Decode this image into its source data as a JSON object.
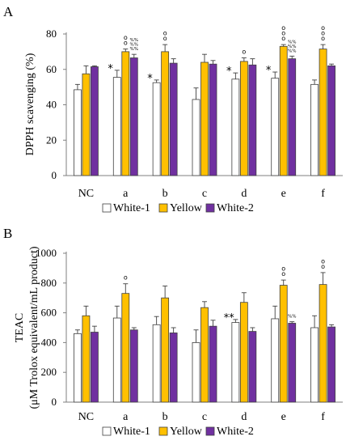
{
  "colors": {
    "White-1": "#ffffff",
    "Yellow": "#ffc000",
    "White-2": "#7030a0",
    "axis": "#7f7f7f",
    "outline": "#404040",
    "error": "#404040"
  },
  "chart_data": [
    {
      "panel": "A",
      "type": "bar",
      "ylabel": "DPPH scavenging (%)",
      "ylim": [
        0,
        80
      ],
      "yticks": [
        0,
        20,
        40,
        60,
        80
      ],
      "categories": [
        "NC",
        "a",
        "b",
        "c",
        "d",
        "e",
        "f"
      ],
      "series": [
        {
          "name": "White-1",
          "values": [
            48.5,
            55.5,
            52.5,
            43,
            54.5,
            55,
            51.5
          ],
          "errors": [
            3,
            4,
            1.5,
            6.5,
            3.5,
            3.5,
            2.5
          ]
        },
        {
          "name": "Yellow",
          "values": [
            57.5,
            70,
            70,
            64,
            64.5,
            73,
            71.5
          ],
          "errors": [
            4.5,
            1.5,
            4,
            4.5,
            2,
            1,
            2.5
          ]
        },
        {
          "name": "White-2",
          "values": [
            61.5,
            66.5,
            63.5,
            63,
            62.5,
            66,
            62
          ],
          "errors": [
            0.5,
            2,
            2.5,
            2,
            3.5,
            1.5,
            1
          ]
        }
      ],
      "annotations": [
        {
          "category": "a",
          "series": "White-1",
          "text": "*"
        },
        {
          "category": "b",
          "series": "White-1",
          "text": "*"
        },
        {
          "category": "d",
          "series": "White-1",
          "text": "*"
        },
        {
          "category": "e",
          "series": "White-1",
          "text": "*"
        },
        {
          "category": "a",
          "series": "Yellow",
          "text": "o"
        },
        {
          "category": "a",
          "series": "Yellow",
          "text": "o"
        },
        {
          "category": "b",
          "series": "Yellow",
          "text": "o"
        },
        {
          "category": "b",
          "series": "Yellow",
          "text": "o"
        },
        {
          "category": "d",
          "series": "Yellow",
          "text": "o"
        },
        {
          "category": "e",
          "series": "Yellow",
          "text": "o"
        },
        {
          "category": "e",
          "series": "Yellow",
          "text": "o"
        },
        {
          "category": "e",
          "series": "Yellow",
          "text": "o"
        },
        {
          "category": "f",
          "series": "Yellow",
          "text": "o"
        },
        {
          "category": "f",
          "series": "Yellow",
          "text": "o"
        },
        {
          "category": "f",
          "series": "Yellow",
          "text": "o"
        },
        {
          "category": "a",
          "series": "White-2",
          "text": "%%"
        },
        {
          "category": "a",
          "series": "White-2",
          "text": "%%"
        },
        {
          "category": "a",
          "series": "White-2",
          "text": "%%"
        },
        {
          "category": "e",
          "series": "White-2",
          "text": "%%"
        },
        {
          "category": "e",
          "series": "White-2",
          "text": "%%"
        },
        {
          "category": "e",
          "series": "White-2",
          "text": "%%"
        }
      ],
      "legend": {
        "entries": [
          "White-1",
          "Yellow",
          "White-2"
        ],
        "placement": "bottom-center"
      }
    },
    {
      "panel": "B",
      "type": "bar",
      "ylabel": "TEAC",
      "ylabel_sub": "(μM Trolox equivalent/mL product)",
      "ylim": [
        0,
        1000
      ],
      "yticks": [
        0,
        200,
        400,
        600,
        800,
        1000
      ],
      "categories": [
        "NC",
        "a",
        "b",
        "c",
        "d",
        "e",
        "f"
      ],
      "series": [
        {
          "name": "White-1",
          "values": [
            460,
            565,
            520,
            400,
            535,
            560,
            500
          ],
          "errors": [
            25,
            80,
            55,
            85,
            20,
            85,
            80
          ]
        },
        {
          "name": "Yellow",
          "values": [
            580,
            730,
            700,
            635,
            670,
            785,
            790
          ],
          "errors": [
            65,
            65,
            80,
            40,
            65,
            35,
            80
          ]
        },
        {
          "name": "White-2",
          "values": [
            470,
            485,
            465,
            510,
            475,
            530,
            505
          ],
          "errors": [
            40,
            15,
            35,
            40,
            25,
            10,
            15
          ]
        }
      ],
      "annotations": [
        {
          "category": "a",
          "series": "Yellow",
          "text": "o"
        },
        {
          "category": "d",
          "series": "White-1",
          "text": "**"
        },
        {
          "category": "e",
          "series": "Yellow",
          "text": "o"
        },
        {
          "category": "e",
          "series": "Yellow",
          "text": "o"
        },
        {
          "category": "f",
          "series": "Yellow",
          "text": "o"
        },
        {
          "category": "f",
          "series": "Yellow",
          "text": "o"
        },
        {
          "category": "e",
          "series": "White-2",
          "text": "%%"
        }
      ],
      "legend": {
        "entries": [
          "White-1",
          "Yellow",
          "White-2"
        ],
        "placement": "bottom-center"
      }
    }
  ]
}
